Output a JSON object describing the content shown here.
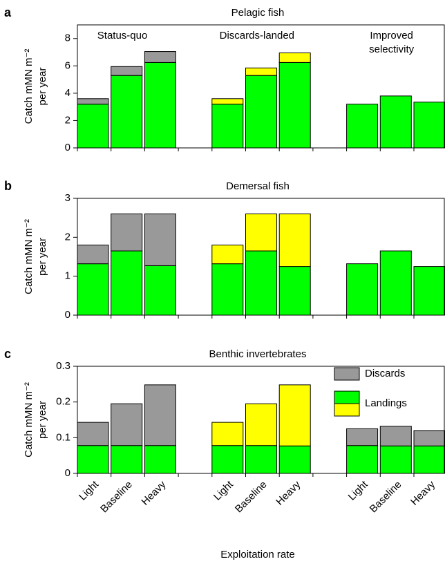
{
  "chart_data": [
    {
      "type": "bar",
      "stacked": true,
      "label": "a",
      "title": "Pelagic fish",
      "y_label": [
        "Catch mMN m⁻²",
        "per year"
      ],
      "group_labels": [
        [
          "Status-quo"
        ],
        [
          "Discards-landed"
        ],
        [
          "Improved",
          "selectivity"
        ]
      ],
      "ylim": [
        0,
        9
      ],
      "yticks": [
        0,
        2,
        4,
        6,
        8
      ],
      "series": [
        {
          "name": "Landings",
          "color": "#00ff00",
          "values": [
            3.2,
            5.3,
            6.25,
            3.2,
            5.3,
            6.25,
            3.2,
            3.8,
            3.35
          ]
        },
        {
          "name": "Discards",
          "color": "#999999",
          "values": [
            0.4,
            0.65,
            0.8,
            null,
            null,
            null,
            null,
            null,
            null
          ]
        },
        {
          "color": "#ffff00",
          "values": [
            null,
            null,
            null,
            0.4,
            0.55,
            0.7,
            null,
            null,
            null
          ]
        }
      ]
    },
    {
      "type": "bar",
      "stacked": true,
      "label": "b",
      "title": "Demersal fish",
      "y_label": [
        "Catch mMN m⁻²",
        "per year"
      ],
      "ylim": [
        0,
        3
      ],
      "yticks": [
        0,
        1,
        2,
        3
      ],
      "series": [
        {
          "name": "Landings",
          "color": "#00ff00",
          "values": [
            1.32,
            1.65,
            1.27,
            1.32,
            1.65,
            1.25,
            1.32,
            1.65,
            1.25
          ]
        },
        {
          "name": "Discards",
          "color": "#999999",
          "values": [
            0.48,
            0.95,
            1.33,
            null,
            null,
            null,
            null,
            null,
            null
          ]
        },
        {
          "color": "#ffff00",
          "values": [
            null,
            null,
            null,
            0.48,
            0.95,
            1.35,
            null,
            null,
            null
          ]
        }
      ]
    },
    {
      "type": "bar",
      "stacked": true,
      "label": "c",
      "title": "Benthic invertebrates",
      "y_label": [
        "Catch mMN m⁻²",
        "per year"
      ],
      "x_label": "Exploitation rate",
      "categories": [
        "Light",
        "Baseline",
        "Heavy",
        "Light",
        "Baseline",
        "Heavy",
        "Light",
        "Baseline",
        "Heavy"
      ],
      "ylim": [
        0,
        0.3
      ],
      "yticks": [
        0,
        0.1,
        0.2,
        0.3
      ],
      "legend": "upper right",
      "series": [
        {
          "name": "Landings",
          "color": "#00ff00",
          "values": [
            0.078,
            0.078,
            0.078,
            0.078,
            0.078,
            0.077,
            0.078,
            0.077,
            0.077
          ]
        },
        {
          "name": "Discards",
          "color": "#999999",
          "values": [
            0.065,
            0.117,
            0.17,
            null,
            null,
            null,
            0.047,
            0.055,
            0.043
          ]
        },
        {
          "color": "#ffff00",
          "values": [
            null,
            null,
            null,
            0.065,
            0.117,
            0.171,
            null,
            null,
            null
          ]
        }
      ]
    }
  ]
}
